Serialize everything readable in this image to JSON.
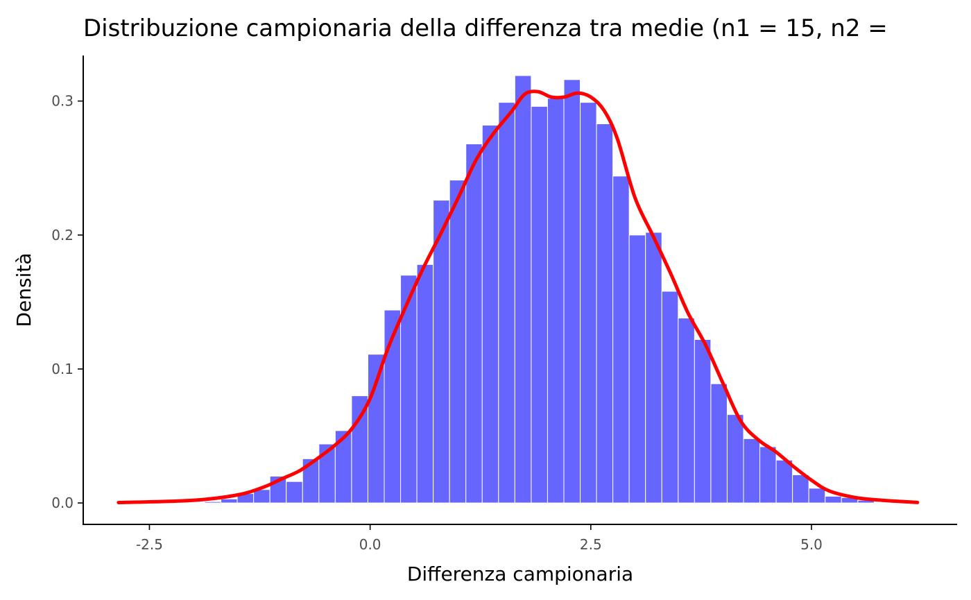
{
  "chart_data": {
    "type": "bar",
    "title": "Distribuzione campionaria della differenza tra medie (n1 = 15, n2 =",
    "xlabel": "Differenza campionaria",
    "ylabel": "Densità",
    "xlim": [
      -3.25,
      6.65
    ],
    "ylim": [
      -0.016,
      0.334
    ],
    "x_ticks": [
      -2.5,
      0.0,
      2.5,
      5.0
    ],
    "x_tick_labels": [
      "-2.5",
      "0.0",
      "2.5",
      "5.0"
    ],
    "y_ticks": [
      0.0,
      0.1,
      0.2,
      0.3
    ],
    "y_tick_labels": [
      "0.0",
      "0.1",
      "0.2",
      "0.3"
    ],
    "histogram": {
      "bin_width": 0.185,
      "color": "#6666ff",
      "bins_start": [
        -1.875,
        -1.69,
        -1.505,
        -1.32,
        -1.135,
        -0.95,
        -0.765,
        -0.58,
        -0.395,
        -0.21,
        -0.025,
        0.16,
        0.345,
        0.53,
        0.715,
        0.9,
        1.085,
        1.27,
        1.455,
        1.64,
        1.825,
        2.01,
        2.195,
        2.38,
        2.565,
        2.75,
        2.935,
        3.12,
        3.305,
        3.49,
        3.675,
        3.86,
        4.045,
        4.23,
        4.415,
        4.6,
        4.785,
        4.97,
        5.155,
        5.34,
        5.525
      ],
      "density": [
        0.001,
        0.003,
        0.007,
        0.01,
        0.02,
        0.016,
        0.033,
        0.044,
        0.054,
        0.08,
        0.111,
        0.144,
        0.17,
        0.178,
        0.226,
        0.241,
        0.268,
        0.282,
        0.299,
        0.319,
        0.296,
        0.302,
        0.316,
        0.299,
        0.283,
        0.244,
        0.2,
        0.202,
        0.158,
        0.138,
        0.122,
        0.089,
        0.066,
        0.048,
        0.042,
        0.032,
        0.021,
        0.011,
        0.005,
        0.004,
        0.002
      ]
    },
    "density_curve": {
      "color": "#ff0000",
      "x": [
        -2.85,
        -2.0,
        -1.5,
        -1.2,
        -1.0,
        -0.8,
        -0.6,
        -0.4,
        -0.2,
        0.0,
        0.2,
        0.4,
        0.6,
        0.8,
        1.0,
        1.2,
        1.4,
        1.6,
        1.75,
        1.9,
        2.05,
        2.2,
        2.35,
        2.5,
        2.65,
        2.8,
        3.0,
        3.2,
        3.4,
        3.6,
        3.8,
        4.0,
        4.2,
        4.4,
        4.6,
        4.8,
        5.0,
        5.2,
        5.5,
        5.8,
        6.2
      ],
      "y": [
        0.0003,
        0.002,
        0.006,
        0.012,
        0.018,
        0.024,
        0.033,
        0.043,
        0.056,
        0.078,
        0.115,
        0.146,
        0.175,
        0.201,
        0.228,
        0.256,
        0.276,
        0.292,
        0.305,
        0.307,
        0.303,
        0.303,
        0.306,
        0.303,
        0.293,
        0.272,
        0.228,
        0.2,
        0.172,
        0.142,
        0.118,
        0.089,
        0.061,
        0.047,
        0.038,
        0.027,
        0.017,
        0.009,
        0.004,
        0.002,
        0.0004
      ]
    },
    "grid": false,
    "legend": "none"
  }
}
